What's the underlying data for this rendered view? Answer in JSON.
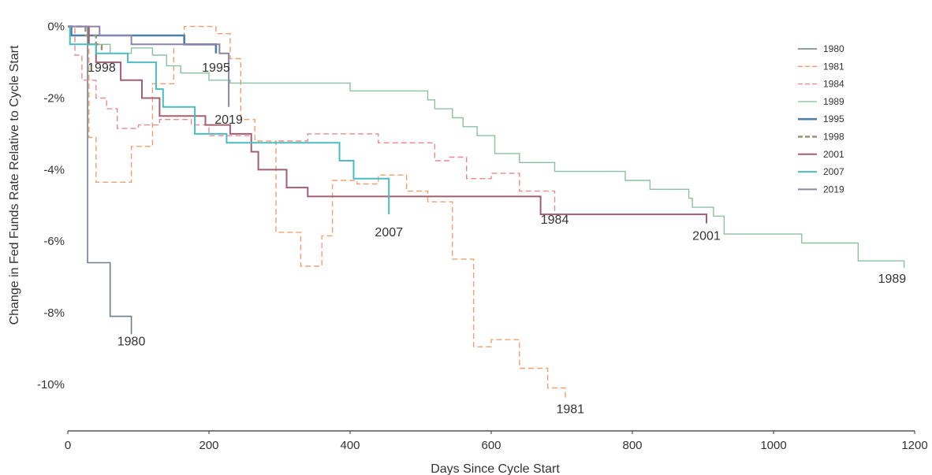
{
  "chart_data": {
    "type": "line",
    "xlabel": "Days Since Cycle Start",
    "ylabel": "Change in Fed Funds Rate Relative to Cycle Start",
    "xlim": [
      0,
      1200
    ],
    "ylim": [
      -11.3,
      0.3
    ],
    "x_ticks": [
      0,
      200,
      400,
      600,
      800,
      1000,
      1200
    ],
    "x_tick_labels": [
      "0",
      "200",
      "400",
      "600",
      "800",
      "1000",
      "1200"
    ],
    "y_ticks": [
      0,
      -2,
      -4,
      -6,
      -8,
      -10
    ],
    "y_tick_labels": [
      "0%",
      "-2%",
      "-4%",
      "-6%",
      "-8%",
      "-10%"
    ],
    "grid": false,
    "legend_position": "right",
    "series": [
      {
        "name": "1980",
        "color": "#6d7f88",
        "dash": "solid",
        "width": 1.6,
        "label": "1980",
        "label_at": [
          90,
          -8.8
        ],
        "points": [
          [
            0,
            0
          ],
          [
            28,
            0
          ],
          [
            28,
            -6.6
          ],
          [
            60,
            -6.6
          ],
          [
            60,
            -8.1
          ],
          [
            90,
            -8.1
          ],
          [
            90,
            -8.6
          ]
        ]
      },
      {
        "name": "1981",
        "color": "#f0a070",
        "dash": "dashed",
        "width": 1.4,
        "label": "1981",
        "label_at": [
          712,
          -10.7
        ],
        "points": [
          [
            0,
            0
          ],
          [
            30,
            0
          ],
          [
            30,
            -3.1
          ],
          [
            40,
            -3.1
          ],
          [
            40,
            -4.35
          ],
          [
            90,
            -4.35
          ],
          [
            90,
            -3.35
          ],
          [
            120,
            -3.35
          ],
          [
            120,
            -1.6
          ],
          [
            150,
            -1.6
          ],
          [
            150,
            -0.5
          ],
          [
            165,
            -0.5
          ],
          [
            165,
            0
          ],
          [
            210,
            0
          ],
          [
            210,
            -0.2
          ],
          [
            230,
            -0.2
          ],
          [
            230,
            -0.9
          ],
          [
            245,
            -0.9
          ],
          [
            245,
            -2.6
          ],
          [
            265,
            -2.6
          ],
          [
            265,
            -3.2
          ],
          [
            295,
            -3.2
          ],
          [
            295,
            -5.75
          ],
          [
            330,
            -5.75
          ],
          [
            330,
            -6.7
          ],
          [
            360,
            -6.7
          ],
          [
            360,
            -5.85
          ],
          [
            375,
            -5.85
          ],
          [
            375,
            -4.3
          ],
          [
            410,
            -4.3
          ],
          [
            410,
            -4.4
          ],
          [
            440,
            -4.4
          ],
          [
            440,
            -4.15
          ],
          [
            480,
            -4.15
          ],
          [
            480,
            -4.6
          ],
          [
            510,
            -4.6
          ],
          [
            510,
            -4.9
          ],
          [
            545,
            -4.9
          ],
          [
            545,
            -6.5
          ],
          [
            575,
            -6.5
          ],
          [
            575,
            -8.95
          ],
          [
            600,
            -8.95
          ],
          [
            600,
            -8.75
          ],
          [
            640,
            -8.75
          ],
          [
            640,
            -9.55
          ],
          [
            680,
            -9.55
          ],
          [
            680,
            -10.1
          ],
          [
            705,
            -10.1
          ],
          [
            705,
            -10.4
          ]
        ]
      },
      {
        "name": "1984",
        "color": "#e88a8c",
        "dash": "dashed",
        "width": 1.4,
        "label": "1984",
        "label_at": [
          690,
          -5.4
        ],
        "points": [
          [
            0,
            0
          ],
          [
            10,
            0
          ],
          [
            10,
            -0.8
          ],
          [
            20,
            -0.8
          ],
          [
            20,
            -1.5
          ],
          [
            40,
            -1.5
          ],
          [
            40,
            -2.0
          ],
          [
            55,
            -2.0
          ],
          [
            55,
            -2.3
          ],
          [
            70,
            -2.3
          ],
          [
            70,
            -2.85
          ],
          [
            100,
            -2.85
          ],
          [
            100,
            -2.75
          ],
          [
            130,
            -2.75
          ],
          [
            130,
            -2.6
          ],
          [
            175,
            -2.6
          ],
          [
            175,
            -2.75
          ],
          [
            200,
            -2.75
          ],
          [
            200,
            -3.05
          ],
          [
            260,
            -3.05
          ],
          [
            260,
            -3.25
          ],
          [
            295,
            -3.25
          ],
          [
            295,
            -3.2
          ],
          [
            340,
            -3.2
          ],
          [
            340,
            -3.0
          ],
          [
            440,
            -3.0
          ],
          [
            440,
            -3.25
          ],
          [
            520,
            -3.25
          ],
          [
            520,
            -3.75
          ],
          [
            540,
            -3.75
          ],
          [
            540,
            -3.65
          ],
          [
            565,
            -3.65
          ],
          [
            565,
            -4.25
          ],
          [
            600,
            -4.25
          ],
          [
            600,
            -4.1
          ],
          [
            640,
            -4.1
          ],
          [
            640,
            -4.6
          ],
          [
            690,
            -4.6
          ],
          [
            690,
            -5.2
          ]
        ]
      },
      {
        "name": "1989",
        "color": "#8cc0a0",
        "dash": "solid",
        "width": 1.4,
        "label": "1989",
        "label_at": [
          1168,
          -7.05
        ],
        "points": [
          [
            0,
            0
          ],
          [
            30,
            0
          ],
          [
            30,
            -0.5
          ],
          [
            60,
            -0.5
          ],
          [
            60,
            -0.75
          ],
          [
            90,
            -0.75
          ],
          [
            90,
            -0.6
          ],
          [
            120,
            -0.6
          ],
          [
            120,
            -0.8
          ],
          [
            140,
            -0.8
          ],
          [
            140,
            -1.1
          ],
          [
            160,
            -1.1
          ],
          [
            160,
            -1.3
          ],
          [
            200,
            -1.3
          ],
          [
            200,
            -1.5
          ],
          [
            230,
            -1.5
          ],
          [
            230,
            -1.58
          ],
          [
            400,
            -1.58
          ],
          [
            400,
            -1.8
          ],
          [
            510,
            -1.8
          ],
          [
            510,
            -2.05
          ],
          [
            520,
            -2.05
          ],
          [
            520,
            -2.3
          ],
          [
            545,
            -2.3
          ],
          [
            545,
            -2.55
          ],
          [
            560,
            -2.55
          ],
          [
            560,
            -2.8
          ],
          [
            580,
            -2.8
          ],
          [
            580,
            -3.05
          ],
          [
            605,
            -3.05
          ],
          [
            605,
            -3.55
          ],
          [
            640,
            -3.55
          ],
          [
            640,
            -3.8
          ],
          [
            690,
            -3.8
          ],
          [
            690,
            -4.05
          ],
          [
            790,
            -4.05
          ],
          [
            790,
            -4.3
          ],
          [
            825,
            -4.3
          ],
          [
            825,
            -4.55
          ],
          [
            880,
            -4.55
          ],
          [
            880,
            -4.8
          ],
          [
            885,
            -4.8
          ],
          [
            885,
            -5.05
          ],
          [
            915,
            -5.05
          ],
          [
            915,
            -5.3
          ],
          [
            930,
            -5.3
          ],
          [
            930,
            -5.8
          ],
          [
            1040,
            -5.8
          ],
          [
            1040,
            -6.05
          ],
          [
            1120,
            -6.05
          ],
          [
            1120,
            -6.55
          ],
          [
            1185,
            -6.55
          ],
          [
            1185,
            -6.75
          ]
        ]
      },
      {
        "name": "1995",
        "color": "#4f7fa5",
        "dash": "solid",
        "width": 2.6,
        "label": "1995",
        "label_at": [
          210,
          -1.15
        ],
        "points": [
          [
            0,
            0
          ],
          [
            5,
            0
          ],
          [
            5,
            -0.25
          ],
          [
            165,
            -0.25
          ],
          [
            165,
            -0.5
          ],
          [
            210,
            -0.5
          ],
          [
            210,
            -0.75
          ]
        ]
      },
      {
        "name": "1998",
        "color": "#9a9177",
        "dash": "dashed",
        "width": 2.4,
        "label": "1998",
        "label_at": [
          48,
          -1.15
        ],
        "points": [
          [
            0,
            0
          ],
          [
            25,
            0
          ],
          [
            25,
            -0.25
          ],
          [
            40,
            -0.25
          ],
          [
            40,
            -0.5
          ],
          [
            48,
            -0.5
          ],
          [
            48,
            -0.75
          ]
        ]
      },
      {
        "name": "2001",
        "color": "#a06070",
        "dash": "solid",
        "width": 2.0,
        "label": "2001",
        "label_at": [
          905,
          -5.85
        ],
        "points": [
          [
            0,
            0
          ],
          [
            30,
            0
          ],
          [
            30,
            -0.5
          ],
          [
            40,
            -0.5
          ],
          [
            40,
            -1.0
          ],
          [
            75,
            -1.0
          ],
          [
            75,
            -1.5
          ],
          [
            105,
            -1.5
          ],
          [
            105,
            -2.0
          ],
          [
            130,
            -2.0
          ],
          [
            130,
            -2.5
          ],
          [
            195,
            -2.5
          ],
          [
            195,
            -2.75
          ],
          [
            230,
            -2.75
          ],
          [
            230,
            -3.0
          ],
          [
            260,
            -3.0
          ],
          [
            260,
            -3.5
          ],
          [
            270,
            -3.5
          ],
          [
            270,
            -4.0
          ],
          [
            310,
            -4.0
          ],
          [
            310,
            -4.5
          ],
          [
            340,
            -4.5
          ],
          [
            340,
            -4.75
          ],
          [
            670,
            -4.75
          ],
          [
            670,
            -5.25
          ],
          [
            905,
            -5.25
          ],
          [
            905,
            -5.5
          ]
        ]
      },
      {
        "name": "2007",
        "color": "#4bbcc0",
        "dash": "solid",
        "width": 2.0,
        "label": "2007",
        "label_at": [
          455,
          -5.75
        ],
        "points": [
          [
            0,
            0
          ],
          [
            3,
            0
          ],
          [
            3,
            -0.5
          ],
          [
            40,
            -0.5
          ],
          [
            40,
            -0.75
          ],
          [
            85,
            -0.75
          ],
          [
            85,
            -1.0
          ],
          [
            125,
            -1.0
          ],
          [
            125,
            -1.75
          ],
          [
            135,
            -1.75
          ],
          [
            135,
            -2.25
          ],
          [
            180,
            -2.25
          ],
          [
            180,
            -3.0
          ],
          [
            225,
            -3.0
          ],
          [
            225,
            -3.25
          ],
          [
            385,
            -3.25
          ],
          [
            385,
            -3.75
          ],
          [
            405,
            -3.75
          ],
          [
            405,
            -4.25
          ],
          [
            455,
            -4.25
          ],
          [
            455,
            -5.25
          ]
        ]
      },
      {
        "name": "2019",
        "color": "#8d84ae",
        "dash": "solid",
        "width": 2.0,
        "label": "2019",
        "label_at": [
          228,
          -2.6
        ],
        "points": [
          [
            0,
            0
          ],
          [
            45,
            0
          ],
          [
            45,
            -0.25
          ],
          [
            90,
            -0.25
          ],
          [
            90,
            -0.5
          ],
          [
            215,
            -0.5
          ],
          [
            215,
            -0.75
          ],
          [
            228,
            -0.75
          ],
          [
            228,
            -2.25
          ]
        ]
      }
    ]
  }
}
